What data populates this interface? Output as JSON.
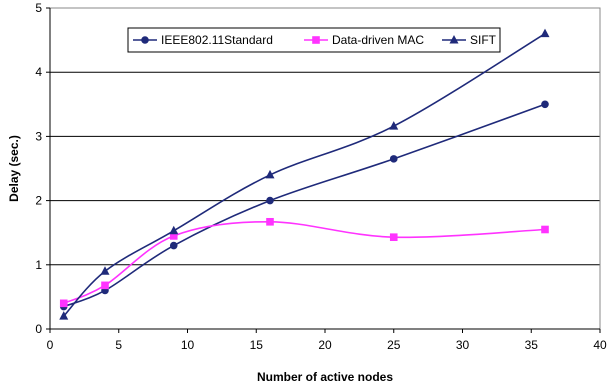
{
  "chart_data": {
    "type": "line",
    "title": "",
    "xlabel": "Number of active nodes",
    "ylabel": "Delay (sec.)",
    "xlim": [
      0,
      40
    ],
    "ylim": [
      0,
      5
    ],
    "xticks": [
      0,
      5,
      10,
      15,
      20,
      25,
      30,
      35,
      40
    ],
    "yticks": [
      0,
      1,
      2,
      3,
      4,
      5
    ],
    "grid": "horizontal",
    "legend_position": "top-center",
    "series": [
      {
        "name": "IEEE802.11Standard",
        "color": "#1f2a7a",
        "marker": "circle",
        "x": [
          1,
          4,
          9,
          16,
          25,
          36
        ],
        "y": [
          0.35,
          0.6,
          1.3,
          2.0,
          2.65,
          3.5
        ]
      },
      {
        "name": "Data-driven MAC",
        "color": "#ff33ff",
        "marker": "square",
        "x": [
          1,
          4,
          9,
          16,
          25,
          36
        ],
        "y": [
          0.4,
          0.68,
          1.45,
          1.67,
          1.43,
          1.55
        ]
      },
      {
        "name": "SIFT",
        "color": "#1f2a7a",
        "marker": "triangle",
        "x": [
          1,
          4,
          9,
          16,
          25,
          36
        ],
        "y": [
          0.2,
          0.9,
          1.53,
          2.4,
          3.16,
          4.6
        ]
      }
    ]
  }
}
